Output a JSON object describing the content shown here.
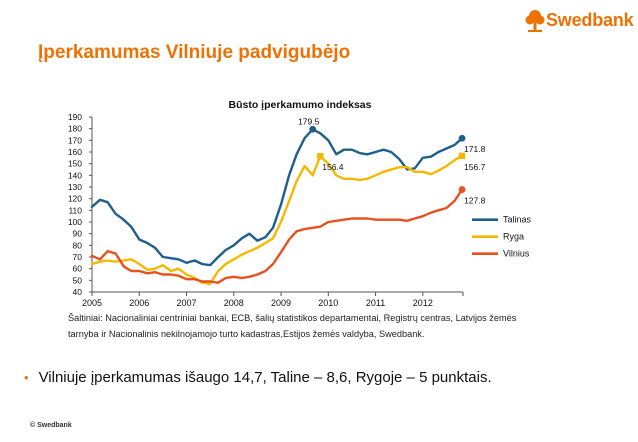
{
  "brand": {
    "name": "Swedbank",
    "color": "#ee7203",
    "logo_icon": "swedbank-oak-tree-icon"
  },
  "slide": {
    "title": "Įperkamumas Vilniuje padvigubėjo",
    "source_note": "Šaltiniai: Nacionaliniai centriniai bankai, ECB, šalių statistikos departamentai, Registrų centras, Latvijos žemės tarnyba ir Nacionalinis nekilnojamojo turto kadastras,Estijos žemės valdyba, Swedbank.",
    "bullet": "Vilniuje įperkamumas išaugo 14,7, Taline – 8,6, Rygoje – 5 punktais.",
    "footer": "© Swedbank"
  },
  "chart_data": {
    "type": "line",
    "title": "Būsto įperkamumo indeksas",
    "xlabel": "",
    "ylabel": "",
    "ylim": [
      40,
      190
    ],
    "xlim": [
      2005,
      2012.85
    ],
    "yticks": [
      40,
      50,
      60,
      70,
      80,
      90,
      100,
      110,
      120,
      130,
      140,
      150,
      160,
      170,
      180,
      190
    ],
    "xticks": [
      "2005",
      "2006",
      "2007",
      "2008",
      "2009",
      "2010",
      "2011",
      "2012"
    ],
    "grid": false,
    "legend": "right",
    "series": [
      {
        "name": "Talinas",
        "color": "#1f5f8b",
        "x": [
          2005.0,
          2005.17,
          2005.33,
          2005.5,
          2005.67,
          2005.83,
          2006.0,
          2006.17,
          2006.33,
          2006.5,
          2006.67,
          2006.83,
          2007.0,
          2007.17,
          2007.33,
          2007.5,
          2007.67,
          2007.83,
          2008.0,
          2008.17,
          2008.33,
          2008.5,
          2008.67,
          2008.83,
          2009.0,
          2009.17,
          2009.33,
          2009.5,
          2009.67,
          2009.83,
          2010.0,
          2010.17,
          2010.33,
          2010.5,
          2010.67,
          2010.83,
          2011.0,
          2011.17,
          2011.33,
          2011.5,
          2011.67,
          2011.83,
          2012.0,
          2012.17,
          2012.33,
          2012.5,
          2012.67,
          2012.83
        ],
        "values": [
          113,
          119,
          117,
          107,
          102,
          96,
          85,
          82,
          78,
          70,
          69,
          68,
          65,
          67,
          64,
          63,
          70,
          76,
          80,
          86,
          90,
          84,
          87,
          95,
          115,
          140,
          158,
          172,
          179.5,
          176,
          170,
          158,
          162,
          162,
          159,
          158,
          160,
          162,
          160,
          154,
          145,
          146,
          155,
          156,
          160,
          163,
          166,
          171.8
        ]
      },
      {
        "name": "Ryga",
        "color": "#f5b800",
        "x": [
          2005.0,
          2005.17,
          2005.33,
          2005.5,
          2005.67,
          2005.83,
          2006.0,
          2006.17,
          2006.33,
          2006.5,
          2006.67,
          2006.83,
          2007.0,
          2007.17,
          2007.33,
          2007.5,
          2007.67,
          2007.83,
          2008.0,
          2008.17,
          2008.33,
          2008.5,
          2008.67,
          2008.83,
          2009.0,
          2009.17,
          2009.33,
          2009.5,
          2009.67,
          2009.83,
          2010.0,
          2010.17,
          2010.33,
          2010.5,
          2010.67,
          2010.83,
          2011.0,
          2011.17,
          2011.33,
          2011.5,
          2011.67,
          2011.83,
          2012.0,
          2012.17,
          2012.33,
          2012.5,
          2012.67,
          2012.83
        ],
        "values": [
          64,
          66,
          67,
          66,
          67,
          68,
          64,
          59,
          60,
          63,
          58,
          60,
          55,
          52,
          48,
          47,
          58,
          64,
          68,
          72,
          75,
          78,
          82,
          86,
          100,
          118,
          135,
          148,
          140,
          156.4,
          150,
          140,
          137,
          137,
          136,
          137,
          140,
          143,
          145,
          147,
          147,
          143,
          143,
          141,
          144,
          148,
          153,
          156.7
        ]
      },
      {
        "name": "Vilnius",
        "color": "#e8501e",
        "x": [
          2005.0,
          2005.17,
          2005.33,
          2005.5,
          2005.67,
          2005.83,
          2006.0,
          2006.17,
          2006.33,
          2006.5,
          2006.67,
          2006.83,
          2007.0,
          2007.17,
          2007.33,
          2007.5,
          2007.67,
          2007.83,
          2008.0,
          2008.17,
          2008.33,
          2008.5,
          2008.67,
          2008.83,
          2009.0,
          2009.17,
          2009.33,
          2009.5,
          2009.67,
          2009.83,
          2010.0,
          2010.17,
          2010.33,
          2010.5,
          2010.67,
          2010.83,
          2011.0,
          2011.17,
          2011.33,
          2011.5,
          2011.67,
          2011.83,
          2012.0,
          2012.17,
          2012.33,
          2012.5,
          2012.67,
          2012.83
        ],
        "values": [
          71,
          68,
          75,
          73,
          62,
          58,
          58,
          56,
          57,
          55,
          55,
          54,
          51,
          51,
          49,
          49,
          48,
          52,
          53,
          52,
          53,
          55,
          58,
          64,
          74,
          85,
          92,
          94,
          95,
          96,
          100,
          101,
          102,
          103,
          103,
          103,
          102,
          102,
          102,
          102,
          101,
          103,
          105,
          108,
          110,
          112,
          118,
          127.8
        ]
      }
    ],
    "annotations": [
      {
        "series": "Talinas",
        "x": 2009.67,
        "y": 179.5,
        "label": "179.5"
      },
      {
        "series": "Ryga",
        "x": 2009.83,
        "y": 156.4,
        "label": "156.4"
      },
      {
        "series": "Talinas",
        "x": 2012.83,
        "y": 171.8,
        "label": "171.8"
      },
      {
        "series": "Ryga",
        "x": 2012.83,
        "y": 156.7,
        "label": "156.7"
      },
      {
        "series": "Vilnius",
        "x": 2012.83,
        "y": 127.8,
        "label": "127.8"
      }
    ]
  }
}
